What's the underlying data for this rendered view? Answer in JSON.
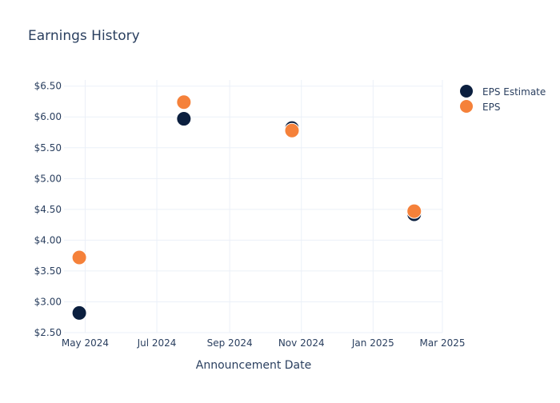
{
  "chart_data": {
    "type": "scatter",
    "title": "Earnings History",
    "xlabel": "Announcement Date",
    "ylabel": "",
    "x_tick_labels": [
      "May 2024",
      "Jul 2024",
      "Sep 2024",
      "Nov 2024",
      "Jan 2025",
      "Mar 2025"
    ],
    "x_tick_dates": [
      "2024-05-01",
      "2024-07-01",
      "2024-09-01",
      "2024-11-01",
      "2025-01-01",
      "2025-03-01"
    ],
    "xlim": [
      "2024-04-13",
      "2025-03-01"
    ],
    "y_tick_labels": [
      "$2.50",
      "$3.00",
      "$3.50",
      "$4.00",
      "$4.50",
      "$5.00",
      "$5.50",
      "$6.00",
      "$6.50"
    ],
    "y_ticks": [
      2.5,
      3.0,
      3.5,
      4.0,
      4.5,
      5.0,
      5.5,
      6.0,
      6.5
    ],
    "ylim": [
      2.5,
      6.6
    ],
    "grid": true,
    "legend_position": "top-right",
    "series": [
      {
        "name": "EPS Estimate",
        "color": "#0b1f3f",
        "points": [
          {
            "x": "2024-04-26",
            "y": 2.82
          },
          {
            "x": "2024-07-24",
            "y": 5.97
          },
          {
            "x": "2024-10-24",
            "y": 5.82
          },
          {
            "x": "2025-02-05",
            "y": 4.42
          }
        ]
      },
      {
        "name": "EPS",
        "color": "#f5813a",
        "points": [
          {
            "x": "2024-04-26",
            "y": 3.72
          },
          {
            "x": "2024-07-24",
            "y": 6.24
          },
          {
            "x": "2024-10-24",
            "y": 5.78
          },
          {
            "x": "2025-02-05",
            "y": 4.47
          }
        ]
      }
    ]
  }
}
